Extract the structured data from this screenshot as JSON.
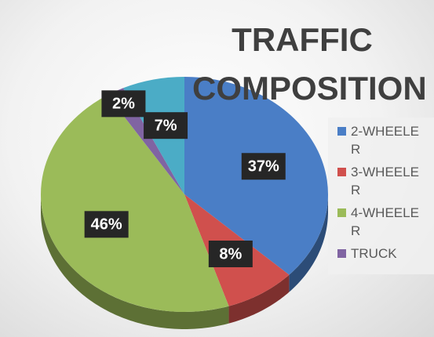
{
  "chart_data": {
    "type": "pie",
    "title": "TRAFFIC COMPOSITION",
    "categories": [
      "2-WHEELER",
      "3-WHEELER",
      "4-WHEELER",
      "TRUCK",
      null
    ],
    "values": [
      37,
      8,
      46,
      2,
      7
    ],
    "value_labels": [
      "37%",
      "8%",
      "46%",
      "2%",
      "7%"
    ],
    "colors": [
      "#4a7ec6",
      "#d0504d",
      "#9bbb59",
      "#8064a2",
      "#4bacc6"
    ],
    "legend": "right"
  }
}
